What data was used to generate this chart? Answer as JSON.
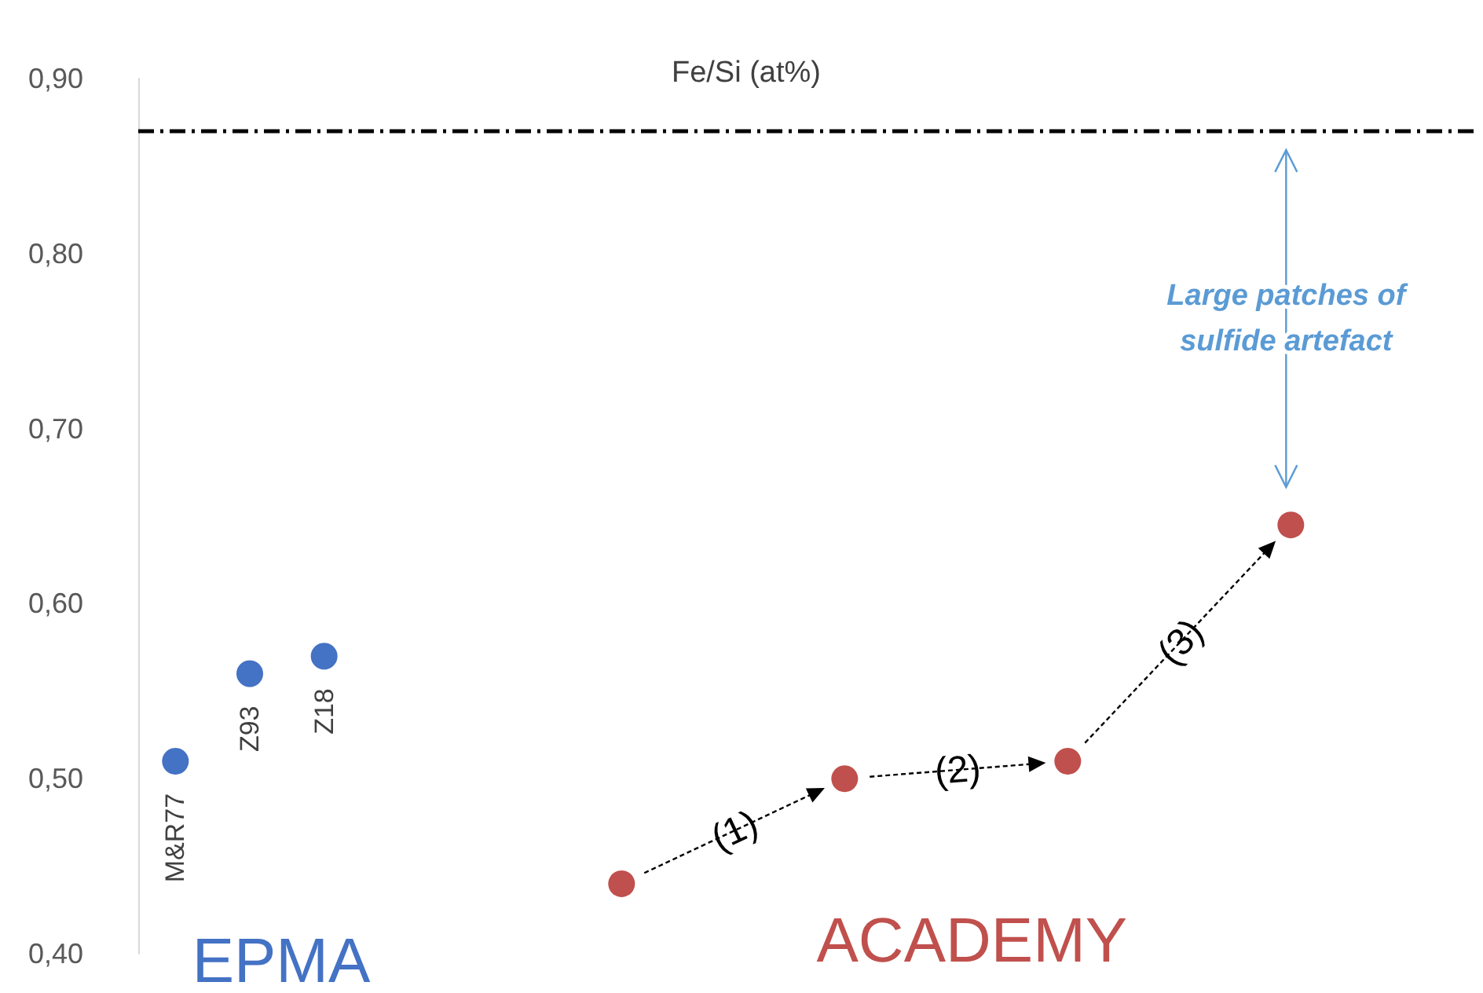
{
  "chart_data": {
    "type": "scatter",
    "title": "Fe/Si (at%)",
    "categories": [
      null,
      null,
      null,
      null,
      null,
      null,
      null,
      null,
      null,
      null,
      null,
      null,
      null,
      null,
      null,
      null,
      null,
      null
    ],
    "series": [
      {
        "color": "#4472c4",
        "values": [
          0.51,
          0.56,
          0.57,
          null,
          null,
          null,
          null,
          null,
          null,
          null,
          null,
          null,
          null,
          null,
          null,
          null,
          null,
          null
        ],
        "value_labels": [
          "M&R77",
          "Z93",
          "Z18",
          null,
          null,
          null,
          null,
          null,
          null,
          null,
          null,
          null,
          null,
          null,
          null,
          null,
          null,
          null
        ]
      },
      {
        "color": "#c0504d",
        "values": [
          null,
          null,
          null,
          null,
          null,
          null,
          0.44,
          null,
          null,
          0.5,
          null,
          null,
          0.51,
          null,
          null,
          0.645,
          null,
          null
        ]
      }
    ],
    "ylim": [
      0.4,
      0.9
    ],
    "yticks": [
      {
        "value": 0.4,
        "label": "0,40"
      },
      {
        "value": 0.5,
        "label": "0,50"
      },
      {
        "value": 0.6,
        "label": "0,60"
      },
      {
        "value": 0.7,
        "label": "0,70"
      },
      {
        "value": 0.8,
        "label": "0,80"
      },
      {
        "value": 0.9,
        "label": "0,90"
      }
    ],
    "ref_lines": [
      {
        "axis": "y",
        "value": 0.87,
        "color": "#000000",
        "line_style": "dashdot"
      }
    ],
    "annotations": [
      "EPMA",
      "ACADEMY",
      "(1)",
      "(2)",
      "(3)",
      "Large patches of sulfide artefact"
    ],
    "marker": "circle",
    "grid": false,
    "tick_labels": "y"
  }
}
